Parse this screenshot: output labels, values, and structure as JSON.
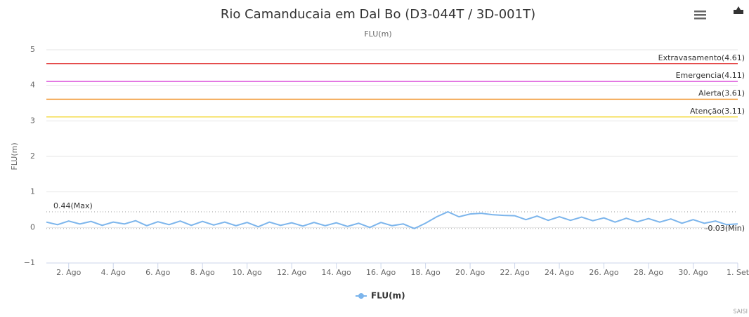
{
  "chart_data": {
    "type": "line",
    "title": "Rio Camanducaia em Dal Bo (D3-044T / 3D-001T)",
    "subtitle": "FLU(m)",
    "y_label": "FLU(m)",
    "credit": "SAISI",
    "x": [
      1,
      1.5,
      2,
      2.5,
      3,
      3.5,
      4,
      4.5,
      5,
      5.5,
      6,
      6.5,
      7,
      7.5,
      8,
      8.5,
      9,
      9.5,
      10,
      10.5,
      11,
      11.5,
      12,
      12.5,
      13,
      13.5,
      14,
      14.5,
      15,
      15.5,
      16,
      16.5,
      17,
      17.5,
      18,
      18.5,
      19,
      19.5,
      20,
      20.5,
      21,
      21.5,
      22,
      22.5,
      23,
      23.5,
      24,
      24.5,
      25,
      25.5,
      26,
      26.5,
      27,
      27.5,
      28,
      28.5,
      29,
      29.5,
      30,
      30.5,
      31,
      31.5,
      32
    ],
    "series": [
      {
        "name": "FLU(m)",
        "color": "#7cb5ec",
        "values": [
          0.15,
          0.08,
          0.18,
          0.1,
          0.17,
          0.06,
          0.15,
          0.1,
          0.19,
          0.05,
          0.16,
          0.08,
          0.18,
          0.06,
          0.17,
          0.07,
          0.15,
          0.05,
          0.14,
          0.02,
          0.15,
          0.06,
          0.13,
          0.04,
          0.14,
          0.05,
          0.13,
          0.03,
          0.12,
          0.0,
          0.14,
          0.05,
          0.1,
          -0.03,
          0.12,
          0.3,
          0.44,
          0.3,
          0.38,
          0.4,
          0.36,
          0.34,
          0.33,
          0.22,
          0.32,
          0.2,
          0.3,
          0.2,
          0.29,
          0.19,
          0.27,
          0.15,
          0.26,
          0.16,
          0.25,
          0.15,
          0.24,
          0.12,
          0.22,
          0.12,
          0.18,
          0.08,
          0.1
        ]
      }
    ],
    "xlim": [
      1,
      32
    ],
    "xticks": [
      {
        "value": 2,
        "label": "2. Ago"
      },
      {
        "value": 4,
        "label": "4. Ago"
      },
      {
        "value": 6,
        "label": "6. Ago"
      },
      {
        "value": 8,
        "label": "8. Ago"
      },
      {
        "value": 10,
        "label": "10. Ago"
      },
      {
        "value": 12,
        "label": "12. Ago"
      },
      {
        "value": 14,
        "label": "14. Ago"
      },
      {
        "value": 16,
        "label": "16. Ago"
      },
      {
        "value": 18,
        "label": "18. Ago"
      },
      {
        "value": 20,
        "label": "20. Ago"
      },
      {
        "value": 22,
        "label": "22. Ago"
      },
      {
        "value": 24,
        "label": "24. Ago"
      },
      {
        "value": 26,
        "label": "26. Ago"
      },
      {
        "value": 28,
        "label": "28. Ago"
      },
      {
        "value": 30,
        "label": "30. Ago"
      },
      {
        "value": 32,
        "label": "1. Set"
      }
    ],
    "ylim": [
      -1,
      5
    ],
    "yticks": [
      {
        "value": -1,
        "label": "−1"
      },
      0,
      1,
      2,
      3,
      4,
      5
    ],
    "grid": true,
    "plot_lines": [
      {
        "label": "Extravasamento(4.61)",
        "value": 4.61,
        "color": "#e03030",
        "dash": false,
        "label_side": "right"
      },
      {
        "label": "Emergencia(4.11)",
        "value": 4.11,
        "color": "#d63ad6",
        "dash": false,
        "label_side": "right"
      },
      {
        "label": "Alerta(3.61)",
        "value": 3.61,
        "color": "#f08c1a",
        "dash": false,
        "label_side": "right"
      },
      {
        "label": "Atenção(3.11)",
        "value": 3.11,
        "color": "#f2d31b",
        "dash": false,
        "label_side": "right"
      },
      {
        "label": "0.44(Max)",
        "value": 0.44,
        "color": "#999999",
        "dash": true,
        "label_side": "left"
      },
      {
        "label": "-0.03(Min)",
        "value": -0.03,
        "color": "#999999",
        "dash": true,
        "label_side": "right"
      }
    ]
  }
}
